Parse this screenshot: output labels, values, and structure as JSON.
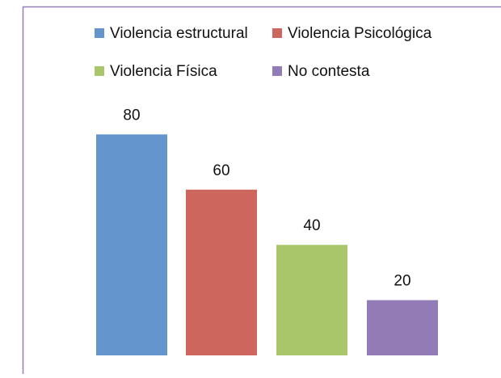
{
  "chart_data": {
    "type": "bar",
    "categories": [
      "Violencia estructural",
      "Violencia Psicológica",
      "Violencia Física",
      "No contesta"
    ],
    "values": [
      80,
      60,
      40,
      20
    ],
    "value_labels": [
      "80",
      "60",
      "40",
      "20"
    ],
    "title": "",
    "xlabel": "",
    "ylabel": "",
    "ylim": [
      0,
      100
    ],
    "grid": false,
    "legend_position": "top",
    "colors": [
      "#6495cd",
      "#cd665c",
      "#a9c66b",
      "#937cb5"
    ],
    "frame_color": "#9a7bbf",
    "label_color": "#111111"
  }
}
